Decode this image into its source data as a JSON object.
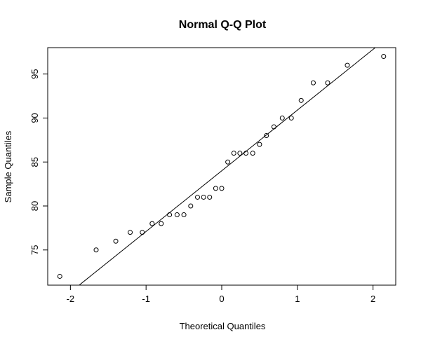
{
  "chart_data": {
    "type": "scatter",
    "title": "Normal Q-Q Plot",
    "xlabel": "Theoretical Quantiles",
    "ylabel": "Sample Quantiles",
    "xlim": [
      -2.3,
      2.3
    ],
    "ylim": [
      71,
      98
    ],
    "x_ticks": [
      -2,
      -1,
      0,
      1,
      2
    ],
    "y_ticks": [
      75,
      80,
      85,
      90,
      95
    ],
    "grid": false,
    "points": [
      {
        "x": -2.14,
        "y": 72
      },
      {
        "x": -1.66,
        "y": 75
      },
      {
        "x": -1.4,
        "y": 76
      },
      {
        "x": -1.21,
        "y": 77
      },
      {
        "x": -1.05,
        "y": 77
      },
      {
        "x": -0.92,
        "y": 78
      },
      {
        "x": -0.8,
        "y": 78
      },
      {
        "x": -0.69,
        "y": 79
      },
      {
        "x": -0.59,
        "y": 79
      },
      {
        "x": -0.5,
        "y": 79
      },
      {
        "x": -0.41,
        "y": 80
      },
      {
        "x": -0.32,
        "y": 81
      },
      {
        "x": -0.24,
        "y": 81
      },
      {
        "x": -0.16,
        "y": 81
      },
      {
        "x": -0.08,
        "y": 82
      },
      {
        "x": 0.0,
        "y": 82
      },
      {
        "x": 0.08,
        "y": 85
      },
      {
        "x": 0.16,
        "y": 86
      },
      {
        "x": 0.24,
        "y": 86
      },
      {
        "x": 0.32,
        "y": 86
      },
      {
        "x": 0.41,
        "y": 86
      },
      {
        "x": 0.5,
        "y": 87
      },
      {
        "x": 0.59,
        "y": 88
      },
      {
        "x": 0.69,
        "y": 89
      },
      {
        "x": 0.8,
        "y": 90
      },
      {
        "x": 0.92,
        "y": 90
      },
      {
        "x": 1.05,
        "y": 92
      },
      {
        "x": 1.21,
        "y": 94
      },
      {
        "x": 1.4,
        "y": 94
      },
      {
        "x": 1.66,
        "y": 96
      },
      {
        "x": 2.14,
        "y": 97
      }
    ],
    "reference_line": {
      "intercept": 84.0,
      "slope": 6.9
    },
    "colors": {
      "points": "#000000",
      "line": "#000000",
      "frame": "#000000"
    }
  }
}
